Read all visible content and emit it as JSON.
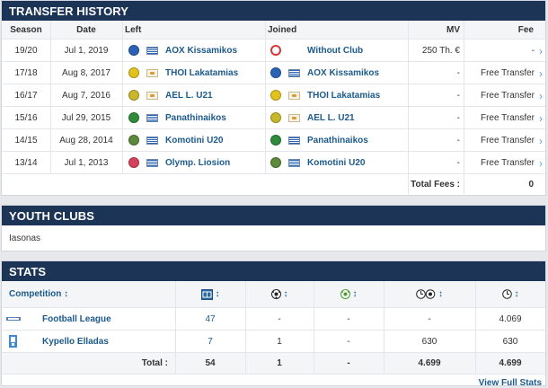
{
  "transfer": {
    "title": "TRANSFER HISTORY",
    "headers": {
      "season": "Season",
      "date": "Date",
      "left": "Left",
      "joined": "Joined",
      "mv": "MV",
      "fee": "Fee"
    },
    "rows": [
      {
        "season": "19/20",
        "date": "Jul 1, 2019",
        "left": "AOX Kissamikos",
        "left_crest": "#2a63b5",
        "left_flag": "gr",
        "joined": "Without Club",
        "joined_crest": "#d23a3a",
        "joined_flag": "",
        "mv": "250 Th. €",
        "fee": "-"
      },
      {
        "season": "17/18",
        "date": "Aug 8, 2017",
        "left": "THOI Lakatamias",
        "left_crest": "#e4c21d",
        "left_flag": "cy",
        "joined": "AOX Kissamikos",
        "joined_crest": "#2a63b5",
        "joined_flag": "gr",
        "mv": "-",
        "fee": "Free Transfer"
      },
      {
        "season": "16/17",
        "date": "Aug 7, 2016",
        "left": "AEL L. U21",
        "left_crest": "#c9b72a",
        "left_flag": "cy",
        "joined": "THOI Lakatamias",
        "joined_crest": "#e4c21d",
        "joined_flag": "cy",
        "mv": "-",
        "fee": "Free Transfer"
      },
      {
        "season": "15/16",
        "date": "Jul 29, 2015",
        "left": "Panathinaikos",
        "left_crest": "#2e8b3a",
        "left_flag": "gr",
        "joined": "AEL L. U21",
        "joined_crest": "#c9b72a",
        "joined_flag": "cy",
        "mv": "-",
        "fee": "Free Transfer"
      },
      {
        "season": "14/15",
        "date": "Aug 28, 2014",
        "left": "Komotini U20",
        "left_crest": "#5a8a3a",
        "left_flag": "gr",
        "joined": "Panathinaikos",
        "joined_crest": "#2e8b3a",
        "joined_flag": "gr",
        "mv": "-",
        "fee": "Free Transfer"
      },
      {
        "season": "13/14",
        "date": "Jul 1, 2013",
        "left": "Olymp. Liosion",
        "left_crest": "#d6405a",
        "left_flag": "gr",
        "joined": "Komotini U20",
        "joined_crest": "#5a8a3a",
        "joined_flag": "gr",
        "mv": "-",
        "fee": "Free Transfer"
      }
    ],
    "total_label": "Total Fees :",
    "total_value": "0"
  },
  "youth": {
    "title": "YOUTH CLUBS",
    "text": "Iasonas"
  },
  "stats": {
    "title": "STATS",
    "competition_label": "Competition ↕",
    "col_icons": [
      "appearances-icon",
      "goals-icon",
      "assists-icon",
      "minutes-per-goal-icon",
      "minutes-played-icon"
    ],
    "sort_glyph": "↕",
    "rows": [
      {
        "competition": "Football League",
        "apps": "47",
        "goals": "-",
        "assists": "-",
        "min_goal": "-",
        "minutes": "4.069"
      },
      {
        "competition": "Kypello Elladas",
        "apps": "7",
        "goals": "1",
        "assists": "-",
        "min_goal": "630",
        "minutes": "630"
      }
    ],
    "total": {
      "label": "Total :",
      "apps": "54",
      "goals": "1",
      "assists": "-",
      "min_goal": "4.699",
      "minutes": "4.699"
    },
    "view_full": "View Full Stats"
  }
}
